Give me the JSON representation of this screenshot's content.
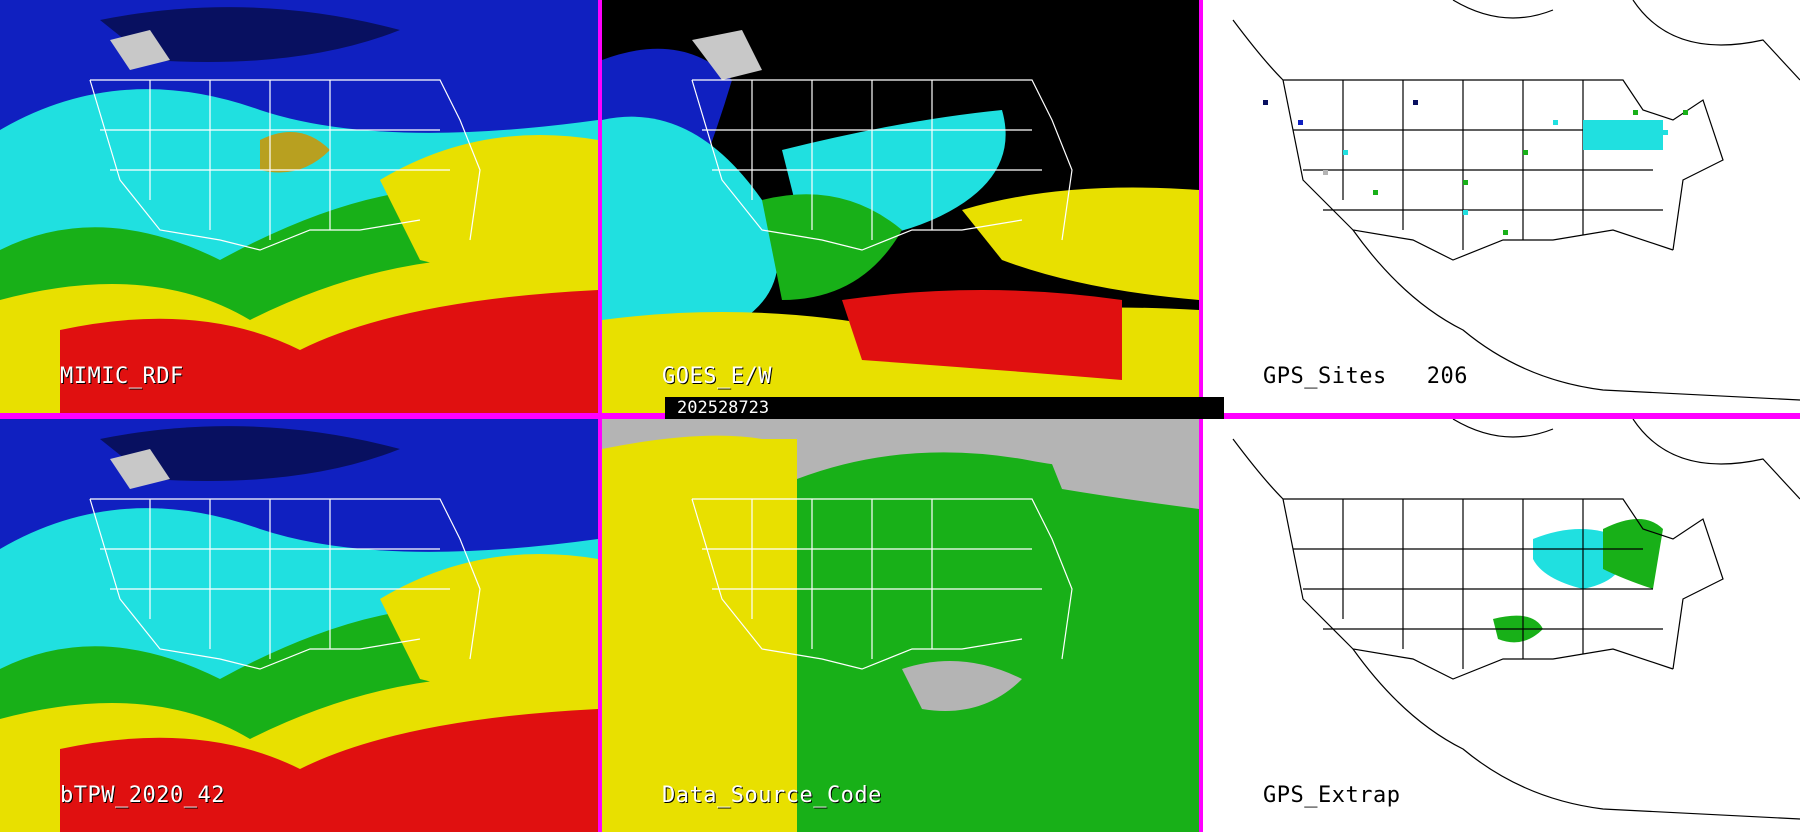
{
  "colors": {
    "divider": "#ff00ff",
    "red": "#e01010",
    "yellow": "#e8e000",
    "green": "#18b018",
    "cyan": "#20e0e0",
    "blue": "#1020c0",
    "navy": "#081060",
    "gray": "#b4b4b4",
    "white": "#ffffff",
    "black": "#000000"
  },
  "panels": {
    "mimic": {
      "label": "MIMIC_RDF"
    },
    "goes": {
      "label": "GOES_E/W"
    },
    "gps_sites": {
      "label": "GPS_Sites",
      "count": "206"
    },
    "btpw": {
      "label": "bTPW_2020_42"
    },
    "data_source": {
      "label": "Data_Source_Code"
    },
    "gps_extrap": {
      "label": "GPS_Extrap"
    }
  },
  "timestamp": "202528723"
}
